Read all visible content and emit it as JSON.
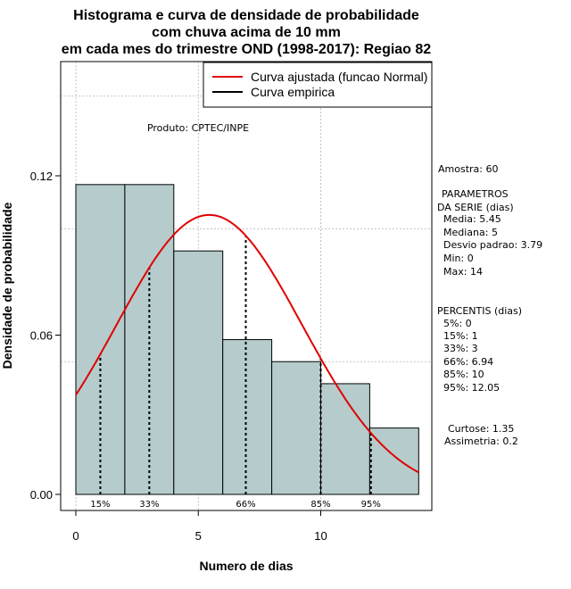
{
  "title_lines": [
    "Histograma e curva de densidade de probabilidade",
    "com chuva acima de 10 mm",
    "em cada mes do trimestre OND (1998-2017): Regiao 82"
  ],
  "product_label": "Produto: CPTEC/INPE",
  "legend": {
    "fitted": "Curva ajustada (funcao Normal)",
    "empirical": "Curva empirica"
  },
  "stats": {
    "sample": "Amostra: 60",
    "params_heading_1": "PARAMETROS",
    "params_heading_2": "DA SERIE (dias)",
    "params": [
      "Media: 5.45",
      "Mediana: 5",
      "Desvio padrao: 3.79",
      "Min: 0",
      "Max: 14"
    ],
    "percentiles_heading": "PERCENTIS (dias)",
    "percentiles": [
      "5%: 0",
      "15%: 1",
      "33%: 3",
      "66%: 6.94",
      "85%: 10",
      "95%: 12.05"
    ],
    "kurtosis": "Curtose: 1.35",
    "skewness": "Assimetria: 0.2"
  },
  "colors": {
    "bar_fill": "#b6cccc",
    "fitted_curve": "#e00000",
    "grid": "#b3b3b3"
  },
  "chart_data": {
    "type": "bar",
    "title": "Histograma e curva de densidade de probabilidade com chuva acima de 10 mm em cada mes do trimestre OND (1998-2017): Regiao 82",
    "xlabel": "Numero de dias",
    "ylabel": "Densidade de probabilidade",
    "xlim": [
      -1,
      14.5
    ],
    "ylim": [
      0,
      0.17
    ],
    "x_ticks": [
      0,
      5,
      10
    ],
    "y_ticks": [
      0.0,
      0.06,
      0.12
    ],
    "y_tick_labels": [
      "0.00",
      "0.06",
      "0.12"
    ],
    "grid_x": [
      0,
      5,
      10
    ],
    "grid_y": [
      0.05,
      0.1,
      0.15
    ],
    "bins": [
      {
        "from": 0,
        "to": 2,
        "density": 0.1167
      },
      {
        "from": 2,
        "to": 4,
        "density": 0.1167
      },
      {
        "from": 4,
        "to": 6,
        "density": 0.0917
      },
      {
        "from": 6,
        "to": 8,
        "density": 0.0583
      },
      {
        "from": 8,
        "to": 10,
        "density": 0.05
      },
      {
        "from": 10,
        "to": 12,
        "density": 0.0417
      },
      {
        "from": 12,
        "to": 14,
        "density": 0.025
      }
    ],
    "normal_fit": {
      "mean": 5.45,
      "sd": 3.79,
      "from": 0,
      "to": 14
    },
    "percentile_markers": [
      {
        "label": "15%",
        "x": 1
      },
      {
        "label": "33%",
        "x": 3
      },
      {
        "label": "66%",
        "x": 6.94
      },
      {
        "label": "85%",
        "x": 10
      },
      {
        "label": "95%",
        "x": 12.05
      }
    ]
  }
}
